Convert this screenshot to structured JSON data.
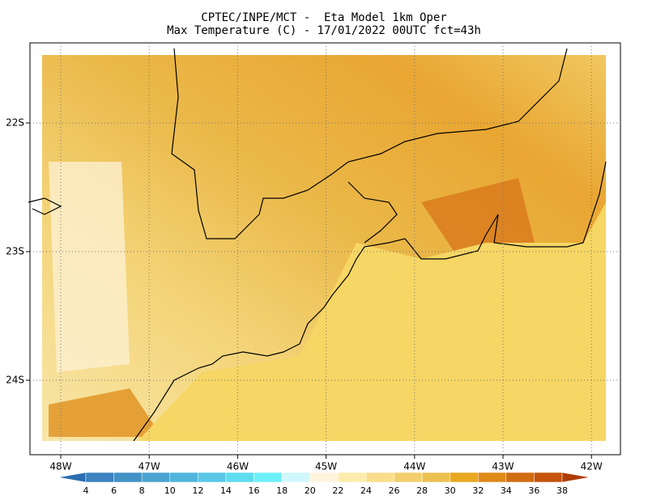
{
  "title": [
    "CPTEC/INPE/MCT -  Eta Model 1km Oper",
    "Max Temperature (C) - 17/01/2022 00UTC fct=43h"
  ],
  "lon_labels": [
    "48W",
    "47W",
    "46W",
    "45W",
    "44W",
    "43W",
    "42W"
  ],
  "lat_labels": [
    "22S",
    "23S",
    "24S"
  ],
  "colorbar": {
    "labels": [
      4,
      6,
      8,
      10,
      12,
      14,
      16,
      18,
      20,
      22,
      24,
      26,
      28,
      30,
      32,
      34,
      36,
      38
    ],
    "colors": [
      "#2a6eb0",
      "#3b82c0",
      "#4292c6",
      "#4aa3d0",
      "#50b5dc",
      "#58c8e6",
      "#5fdcee",
      "#6ef0f8",
      "#d0f8fc",
      "#fff5dc",
      "#fcecae",
      "#f8de8c",
      "#f2cf6c",
      "#ecc050",
      "#e8a820",
      "#e08a18",
      "#d26c10",
      "#c4540a",
      "#b03c06"
    ]
  }
}
